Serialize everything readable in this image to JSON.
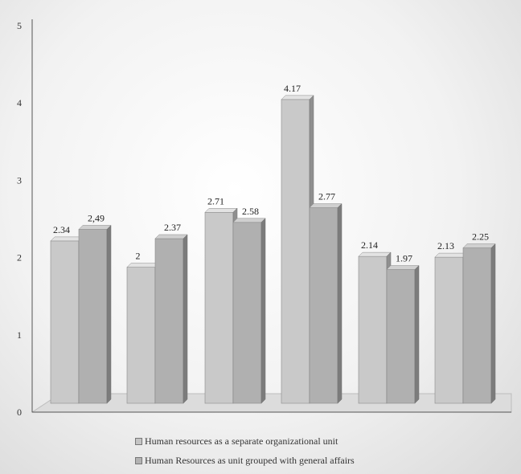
{
  "chart_data": {
    "type": "bar",
    "title": "",
    "xlabel": "",
    "ylabel": "",
    "ylim": [
      0,
      5
    ],
    "yticks": [
      "0",
      "1",
      "2",
      "3",
      "4",
      "5"
    ],
    "categories": [
      "",
      "",
      "",
      "",
      "",
      ""
    ],
    "series": [
      {
        "name": "Human resources as a separate organizational unit",
        "values": [
          2.34,
          2,
          2.71,
          4.17,
          2.14,
          2.13
        ],
        "labels": [
          "2.34",
          "2",
          "2.71",
          "4.17",
          "2.14",
          "2.13"
        ],
        "color": "#c4c4c4"
      },
      {
        "name": "Human Resources as unit grouped with general affairs",
        "values": [
          2.49,
          2.37,
          2.58,
          2.77,
          1.97,
          2.25
        ],
        "labels": [
          "2,49",
          "2.37",
          "2.58",
          "2.77",
          "1.97",
          "2.25"
        ],
        "color": "#b3b3b3"
      }
    ],
    "grid": false,
    "legend_position": "bottom"
  }
}
